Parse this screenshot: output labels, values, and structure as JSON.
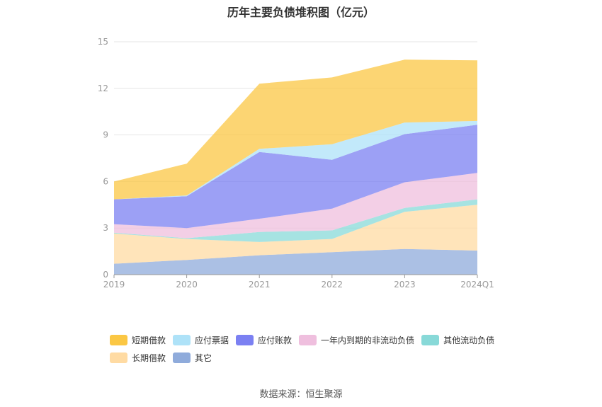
{
  "title": "历年主要负债堆积图（亿元）",
  "source": "数据来源：恒生聚源",
  "chart_data": {
    "type": "area",
    "stacked": true,
    "title": "历年主要负债堆积图（亿元）",
    "xlabel": "",
    "ylabel": "",
    "categories": [
      "2019",
      "2020",
      "2021",
      "2022",
      "2023",
      "2024Q1"
    ],
    "y_ticks": [
      "0",
      "3",
      "6",
      "9",
      "12",
      "15"
    ],
    "ylim": [
      0,
      15
    ],
    "grid": true,
    "legend_position": "bottom",
    "series": [
      {
        "name": "其它",
        "color": "#8fabdb",
        "values": [
          0.7,
          0.95,
          1.25,
          1.45,
          1.65,
          1.55
        ]
      },
      {
        "name": "长期借款",
        "color": "#ffdba3",
        "values": [
          1.95,
          1.35,
          0.85,
          0.85,
          2.4,
          2.95
        ]
      },
      {
        "name": "其他流动负债",
        "color": "#88d9d8",
        "values": [
          0.05,
          0.05,
          0.65,
          0.55,
          0.25,
          0.35
        ]
      },
      {
        "name": "一年内到期的非流动负债",
        "color": "#efbfde",
        "values": [
          0.55,
          0.65,
          0.85,
          1.4,
          1.65,
          1.7
        ]
      },
      {
        "name": "应付账款",
        "color": "#7b80f2",
        "values": [
          1.6,
          2.05,
          4.3,
          3.15,
          3.1,
          3.1
        ]
      },
      {
        "name": "应付票据",
        "color": "#aee2f8",
        "values": [
          0.0,
          0.05,
          0.2,
          1.0,
          0.75,
          0.25
        ]
      },
      {
        "name": "短期借款",
        "color": "#fbc744",
        "values": [
          1.15,
          2.05,
          4.2,
          4.3,
          4.05,
          3.9
        ]
      }
    ],
    "legend_order": [
      "短期借款",
      "应付票据",
      "应付账款",
      "一年内到期的非流动负债",
      "其他流动负债",
      "长期借款",
      "其它"
    ]
  }
}
